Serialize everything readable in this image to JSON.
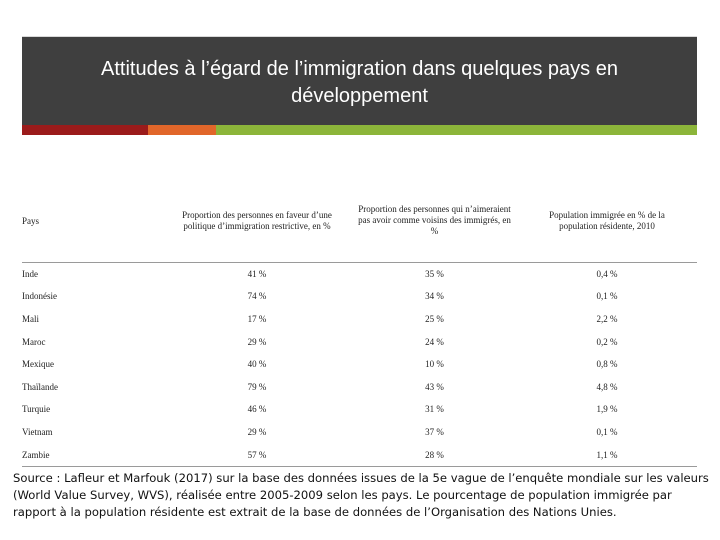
{
  "slide": {
    "title": "Attitudes à l’égard de l’immigration dans quelques pays en développement"
  },
  "table": {
    "headers": [
      "Pays",
      "Proportion des personnes en faveur d’une politique d’immigration restrictive, en %",
      "Proportion des personnes qui n’aimeraient pas avoir comme voisins des immigrés, en %",
      "Population immigrée en % de la population résidente, 2010"
    ],
    "rows": [
      [
        "Inde",
        "41 %",
        "35 %",
        "0,4 %"
      ],
      [
        "Indonésie",
        "74 %",
        "34 %",
        "0,1 %"
      ],
      [
        "Mali",
        "17 %",
        "25 %",
        "2,2 %"
      ],
      [
        "Maroc",
        "29 %",
        "24 %",
        "0,2 %"
      ],
      [
        "Mexique",
        "40 %",
        "10 %",
        "0,8 %"
      ],
      [
        "Thaïlande",
        "79 %",
        "43 %",
        "4,8 %"
      ],
      [
        "Turquie",
        "46 %",
        "31 %",
        "1,9 %"
      ],
      [
        "Vietnam",
        "29 %",
        "37 %",
        "0,1 %"
      ],
      [
        "Zambie",
        "57 %",
        "28 %",
        "1,1 %"
      ]
    ]
  },
  "source": {
    "bold_part": "Source : Lafleur et Marfouk (2017) sur la base des données issues de la 5e vague de l’enquête mondiale sur les valeurs (World Value Survey, WVS), réalisée entre 2005-2009 selon les pays.",
    "normal_part": " Le pourcentage de population immigrée par rapport à la population résidente est extrait de la base de données de l’Organisation des Nations Unies."
  },
  "colors": {
    "header_bg": "#3f3f3f",
    "accent_red": "#9b1b1b",
    "accent_orange": "#e1662a",
    "accent_green": "#8cb53a"
  }
}
